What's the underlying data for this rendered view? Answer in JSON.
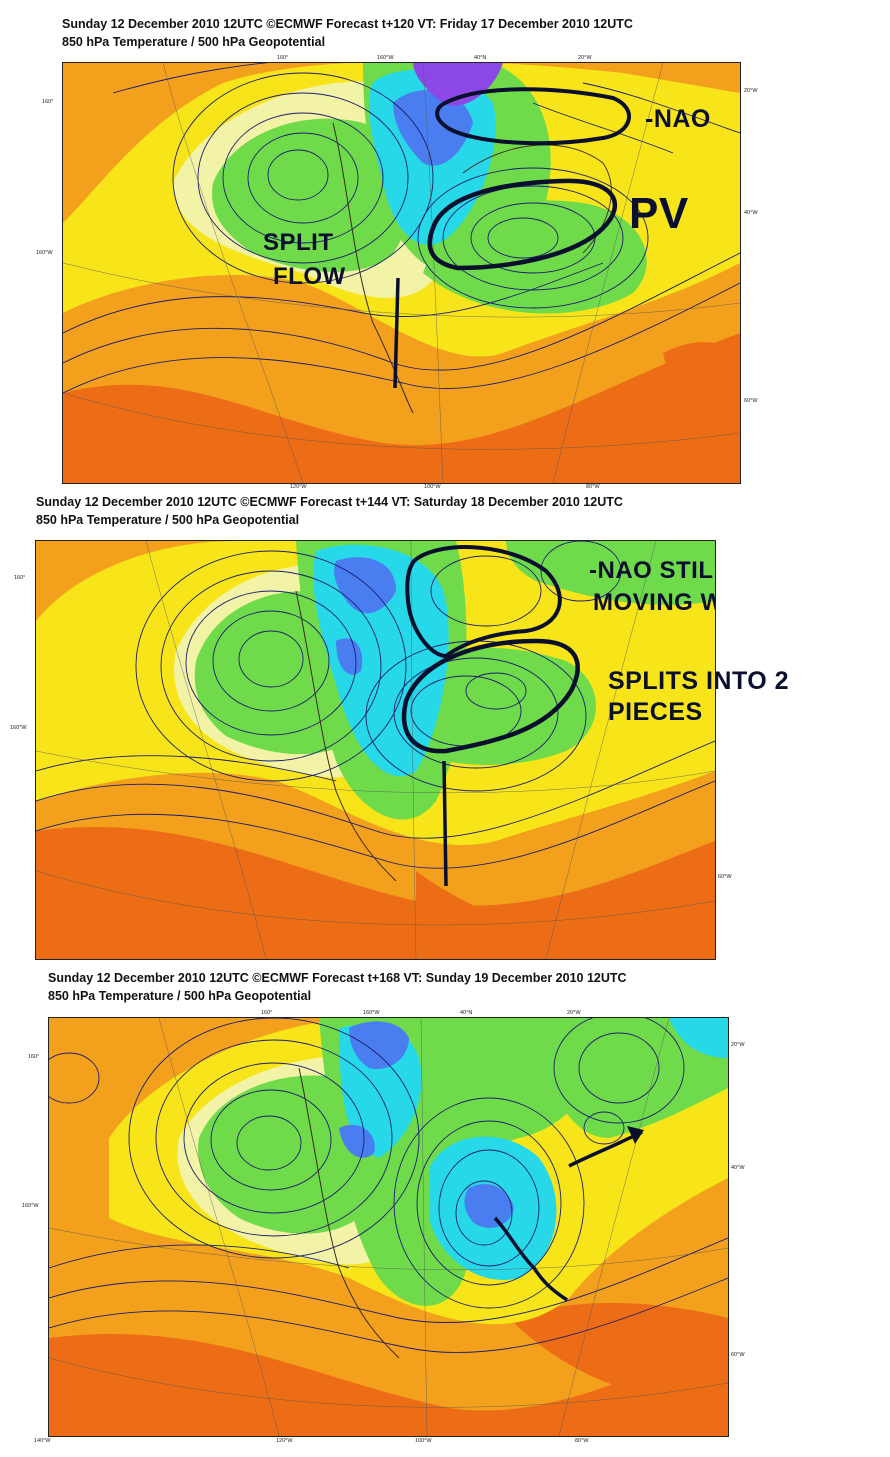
{
  "panels": [
    {
      "header": "Sunday 12 December 2010 12UTC ©ECMWF Forecast t+120 VT: Friday 17 December 2010 12UTC",
      "subtitle": "850 hPa Temperature / 500 hPa Geopotential",
      "annotations": [
        "-NAO",
        "PV",
        "SPLIT",
        "FLOW"
      ],
      "lon_labels": [
        "160°",
        "160°W",
        "40°N",
        "20°W",
        "120°W",
        "100°W",
        "80°W"
      ],
      "side_labels": [
        "160°",
        "160°W",
        "20°W",
        "40°W",
        "60°W"
      ]
    },
    {
      "header": "Sunday 12 December 2010 12UTC ©ECMWF Forecast t+144 VT: Saturday 18 December 2010 12UTC",
      "subtitle": "850 hPa Temperature / 500 hPa Geopotential",
      "annotations": [
        "-NAO STILL",
        "MOVING W",
        "SPLITS  INTO 2",
        "PIECES"
      ],
      "side_labels": [
        "160°",
        "160°W",
        "60°W"
      ]
    },
    {
      "header": "Sunday 12 December 2010 12UTC ©ECMWF Forecast t+168 VT: Sunday 19 December 2010 12UTC",
      "subtitle": "850 hPa Temperature / 500 hPa Geopotential",
      "annotations": [],
      "lon_labels": [
        "160°",
        "160°W",
        "40°N",
        "20°W",
        "140°W",
        "120°W",
        "100°W",
        "80°W"
      ],
      "side_labels": [
        "160°",
        "160°W",
        "20°W",
        "40°W",
        "60°W"
      ]
    }
  ],
  "colors": {
    "warm": "#f3a01d",
    "hot": "#ec6d15",
    "yellow": "#f7e51a",
    "pale": "#f2f3a6",
    "green": "#6fdb4a",
    "cyan": "#27d8e8",
    "blue": "#4a7df0",
    "purple": "#8b48e6",
    "contour": "#1c1d6e",
    "annotation": "#0b0f2e"
  }
}
